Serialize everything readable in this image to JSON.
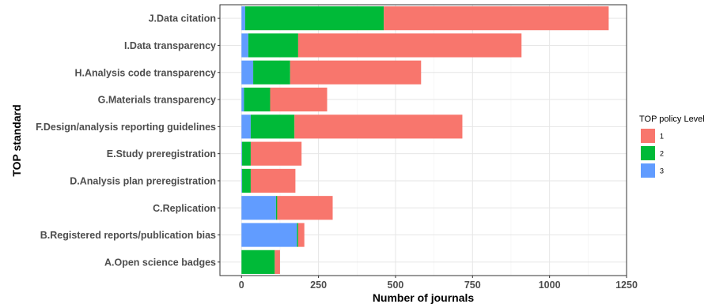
{
  "chart_data": {
    "type": "bar",
    "orientation": "horizontal",
    "stacked": true,
    "categories": [
      "A.Open science badges",
      "B.Registered reports/publication bias",
      "C.Replication",
      "D.Analysis plan preregistration",
      "E.Study preregistration",
      "F.Design/analysis reporting guidelines",
      "G.Materials transparency",
      "H.Analysis code transparency",
      "I.Data transparency",
      "J.Data citation"
    ],
    "series": [
      {
        "name": "3",
        "color": "#619CFF",
        "values": [
          0,
          180,
          112,
          2,
          2,
          30,
          8,
          38,
          22,
          12
        ]
      },
      {
        "name": "2",
        "color": "#00BA38",
        "values": [
          108,
          4,
          4,
          28,
          28,
          142,
          85,
          120,
          162,
          450
        ]
      },
      {
        "name": "1",
        "color": "#F8766D",
        "values": [
          17,
          20,
          180,
          145,
          165,
          545,
          185,
          425,
          725,
          730
        ]
      }
    ],
    "xlabel": "Number of journals",
    "ylabel": "TOP standard",
    "xlim": [
      -70,
      1250
    ],
    "xticks": [
      0,
      250,
      500,
      750,
      1000,
      1250
    ],
    "grid": true,
    "legend": {
      "title": "TOP policy Level",
      "placement": "right",
      "order": [
        "1",
        "2",
        "3"
      ]
    }
  }
}
